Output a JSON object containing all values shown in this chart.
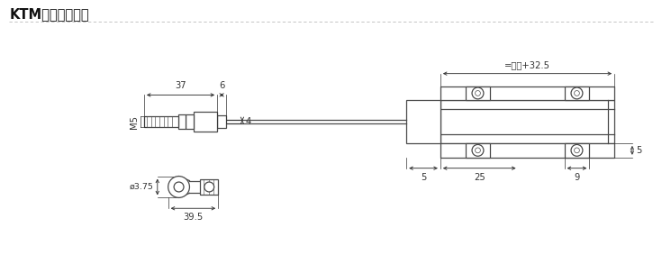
{
  "title": "KTM安装尺寸图：",
  "bg_color": "#ffffff",
  "line_color": "#4a4a4a",
  "dim_color": "#333333",
  "title_color": "#111111",
  "figsize": [
    7.35,
    3.03
  ],
  "dpi": 100,
  "label_37": "37",
  "label_6": "6",
  "label_4": "4",
  "label_M5": "M5",
  "label_diam": "ø3.75",
  "label_395": "39.5",
  "label_model": "=型号+32.5",
  "label_5a": "5",
  "label_25": "25",
  "label_9": "9",
  "label_5b": "5"
}
